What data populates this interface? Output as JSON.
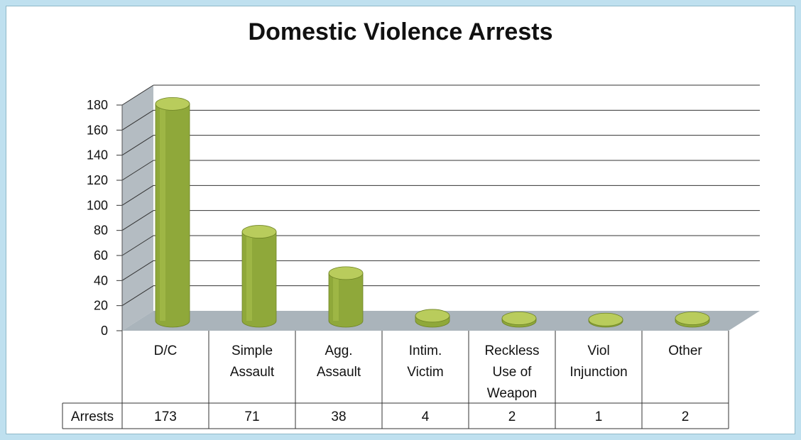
{
  "chart_data": {
    "type": "bar",
    "title": "Domestic Violence Arrests",
    "categories": [
      [
        "D/C"
      ],
      [
        "Simple",
        "Assault"
      ],
      [
        "Agg.",
        "Assault"
      ],
      [
        "Intim.",
        "Victim"
      ],
      [
        "Reckless",
        "Use of",
        "Weapon"
      ],
      [
        "Viol",
        "Injunction"
      ],
      [
        "Other"
      ]
    ],
    "series": [
      {
        "name": "Arrests",
        "values": [
          173,
          71,
          38,
          4,
          2,
          1,
          2
        ]
      }
    ],
    "ylim": [
      0,
      180
    ],
    "yticks": [
      0,
      20,
      40,
      60,
      80,
      100,
      120,
      140,
      160,
      180
    ],
    "grid": true,
    "data_table": true,
    "colors": {
      "bar_side": "#8fa83a",
      "bar_top": "#b9cc5c",
      "wall": "#d9dde0",
      "floor": "#aab4bb",
      "grid": "#333333"
    }
  }
}
